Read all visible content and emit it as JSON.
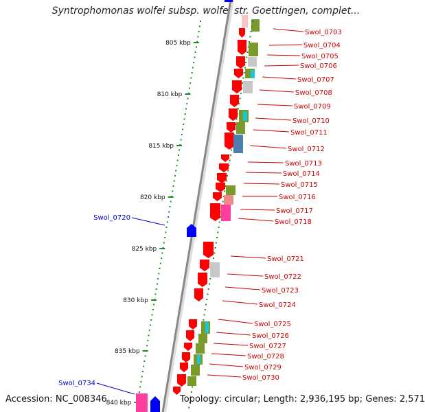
{
  "header": {
    "title": "Syntrophomonas wolfei subsp. wolfei str. Goettingen, complet..."
  },
  "footer": {
    "accession": "Accession: NC_008346",
    "summary": "Topology: circular; Length: 2,936,195 bp; Genes: 2,571"
  },
  "colors": {
    "label_red": "#cc0000",
    "label_blue": "#0000cc",
    "gene_red": "#ff0000",
    "gene_blue": "#0000ff",
    "gene_pink": "#ff3fa0",
    "olive": "#7a9a2a",
    "grey": "#c8c8c8",
    "cyan": "#19c8d8",
    "steel": "#4a7fb0",
    "salmon": "#f08a8a",
    "tick_green": "#1f8a1f"
  },
  "kbp_labels": [
    "805 kbp",
    "810 kbp",
    "815 kbp",
    "820 kbp",
    "825 kbp",
    "830 kbp",
    "835 kbp",
    "840 kbp"
  ],
  "right_genes": [
    "Swol_0703",
    "Swol_0704",
    "Swol_0705",
    "Swol_0706",
    "Swol_0707",
    "Swol_0708",
    "Swol_0709",
    "Swol_0710",
    "Swol_0711",
    "Swol_0712",
    "Swol_0713",
    "Swol_0714",
    "Swol_0715",
    "Swol_0716",
    "Swol_0717",
    "Swol_0718",
    "Swol_0721",
    "Swol_0722",
    "Swol_0723",
    "Swol_0724",
    "Swol_0725",
    "Swol_0726",
    "Swol_0727",
    "Swol_0728",
    "Swol_0729",
    "Swol_0730"
  ],
  "left_genes": [
    "Swol_0720",
    "Swol_0734"
  ]
}
